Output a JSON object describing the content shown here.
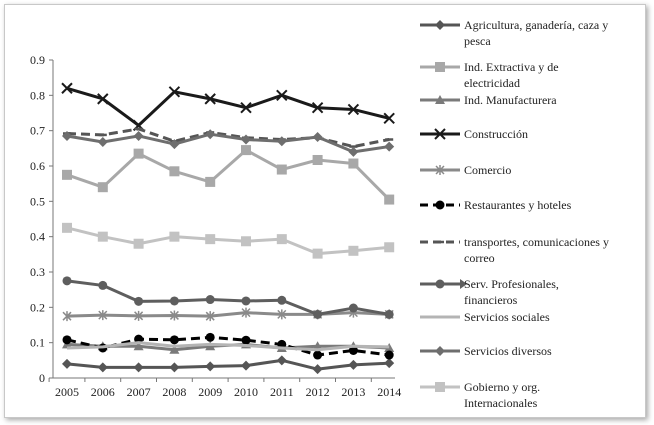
{
  "chart_data": {
    "type": "line",
    "title": "",
    "xlabel": "",
    "ylabel": "",
    "ylim": [
      0,
      0.9
    ],
    "yticks": [
      "0",
      "0.1",
      "0.2",
      "0.3",
      "0.4",
      "0.5",
      "0.6",
      "0.7",
      "0.8",
      "0.9"
    ],
    "x": [
      "2005",
      "2006",
      "2007",
      "2008",
      "2009",
      "2010",
      "2011",
      "2012",
      "2013",
      "2014"
    ],
    "grid": false,
    "legend_position": "right",
    "series": [
      {
        "name": "Agricultura, ganadería, caza y pesca",
        "color": "#555555",
        "marker": "diamond",
        "dash": "solid",
        "values": [
          0.04,
          0.03,
          0.03,
          0.03,
          0.033,
          0.035,
          0.05,
          0.025,
          0.037,
          0.042
        ]
      },
      {
        "name": "Ind. Extractiva y de electricidad",
        "color": "#a8a8a8",
        "marker": "square",
        "dash": "solid",
        "values": [
          0.575,
          0.54,
          0.635,
          0.585,
          0.555,
          0.645,
          0.59,
          0.617,
          0.607,
          0.505
        ]
      },
      {
        "name": "Ind. Manufacturera",
        "color": "#7a7a7a",
        "marker": "triangle",
        "dash": "solid",
        "values": [
          0.095,
          0.09,
          0.09,
          0.08,
          0.09,
          0.095,
          0.085,
          0.09,
          0.09,
          0.085
        ]
      },
      {
        "name": "Construcción",
        "color": "#1a1a1a",
        "marker": "x",
        "dash": "solid",
        "values": [
          0.82,
          0.79,
          0.715,
          0.81,
          0.79,
          0.765,
          0.8,
          0.765,
          0.76,
          0.735
        ]
      },
      {
        "name": "Comercio",
        "color": "#8a8a8a",
        "marker": "asterisk",
        "dash": "solid",
        "values": [
          0.175,
          0.178,
          0.176,
          0.177,
          0.175,
          0.185,
          0.18,
          0.18,
          0.185,
          0.18
        ]
      },
      {
        "name": "Restaurantes y hoteles",
        "color": "#000000",
        "marker": "circle",
        "dash": "dashed",
        "values": [
          0.108,
          0.085,
          0.11,
          0.108,
          0.115,
          0.107,
          0.095,
          0.065,
          0.078,
          0.065
        ]
      },
      {
        "name": "transportes, comunicaciones y correo",
        "color": "#555555",
        "marker": "dash",
        "dash": "dashed",
        "values": [
          0.692,
          0.688,
          0.705,
          0.67,
          0.695,
          0.68,
          0.675,
          0.68,
          0.655,
          0.675
        ]
      },
      {
        "name": "Serv. Profesionales, financieros",
        "color": "#5e5e5e",
        "marker": "circle",
        "dash": "solid",
        "values": [
          0.275,
          0.262,
          0.217,
          0.218,
          0.222,
          0.218,
          0.22,
          0.18,
          0.198,
          0.18
        ]
      },
      {
        "name": "Servicios sociales",
        "color": "#b4b4b4",
        "marker": "none",
        "dash": "solid",
        "values": [
          0.085,
          0.088,
          0.1,
          0.09,
          0.095,
          0.092,
          0.085,
          0.08,
          0.09,
          0.088
        ]
      },
      {
        "name": "Servicios diversos",
        "color": "#6e6e6e",
        "marker": "diamond",
        "dash": "solid",
        "values": [
          0.685,
          0.668,
          0.685,
          0.662,
          0.69,
          0.675,
          0.67,
          0.682,
          0.64,
          0.655
        ]
      },
      {
        "name": "Gobierno y org. Internacionales",
        "color": "#c2c2c2",
        "marker": "square",
        "dash": "solid",
        "values": [
          0.425,
          0.4,
          0.38,
          0.4,
          0.393,
          0.387,
          0.393,
          0.352,
          0.36,
          0.37
        ]
      }
    ],
    "legend_labels": [
      [
        "Agricultura, ganadería, caza y",
        "pesca"
      ],
      [
        "Ind. Extractiva y de",
        "electricidad"
      ],
      [
        "Ind. Manufacturera"
      ],
      [
        "Construcción"
      ],
      [
        "Comercio"
      ],
      [
        "Restaurantes y hoteles"
      ],
      [
        "transportes, comunicaciones y",
        "correo"
      ],
      [
        "Serv. Profesionales,",
        "financieros"
      ],
      [
        "Servicios sociales"
      ],
      [
        "Servicios diversos"
      ],
      [
        "Gobierno y org.",
        "Internacionales"
      ]
    ]
  }
}
